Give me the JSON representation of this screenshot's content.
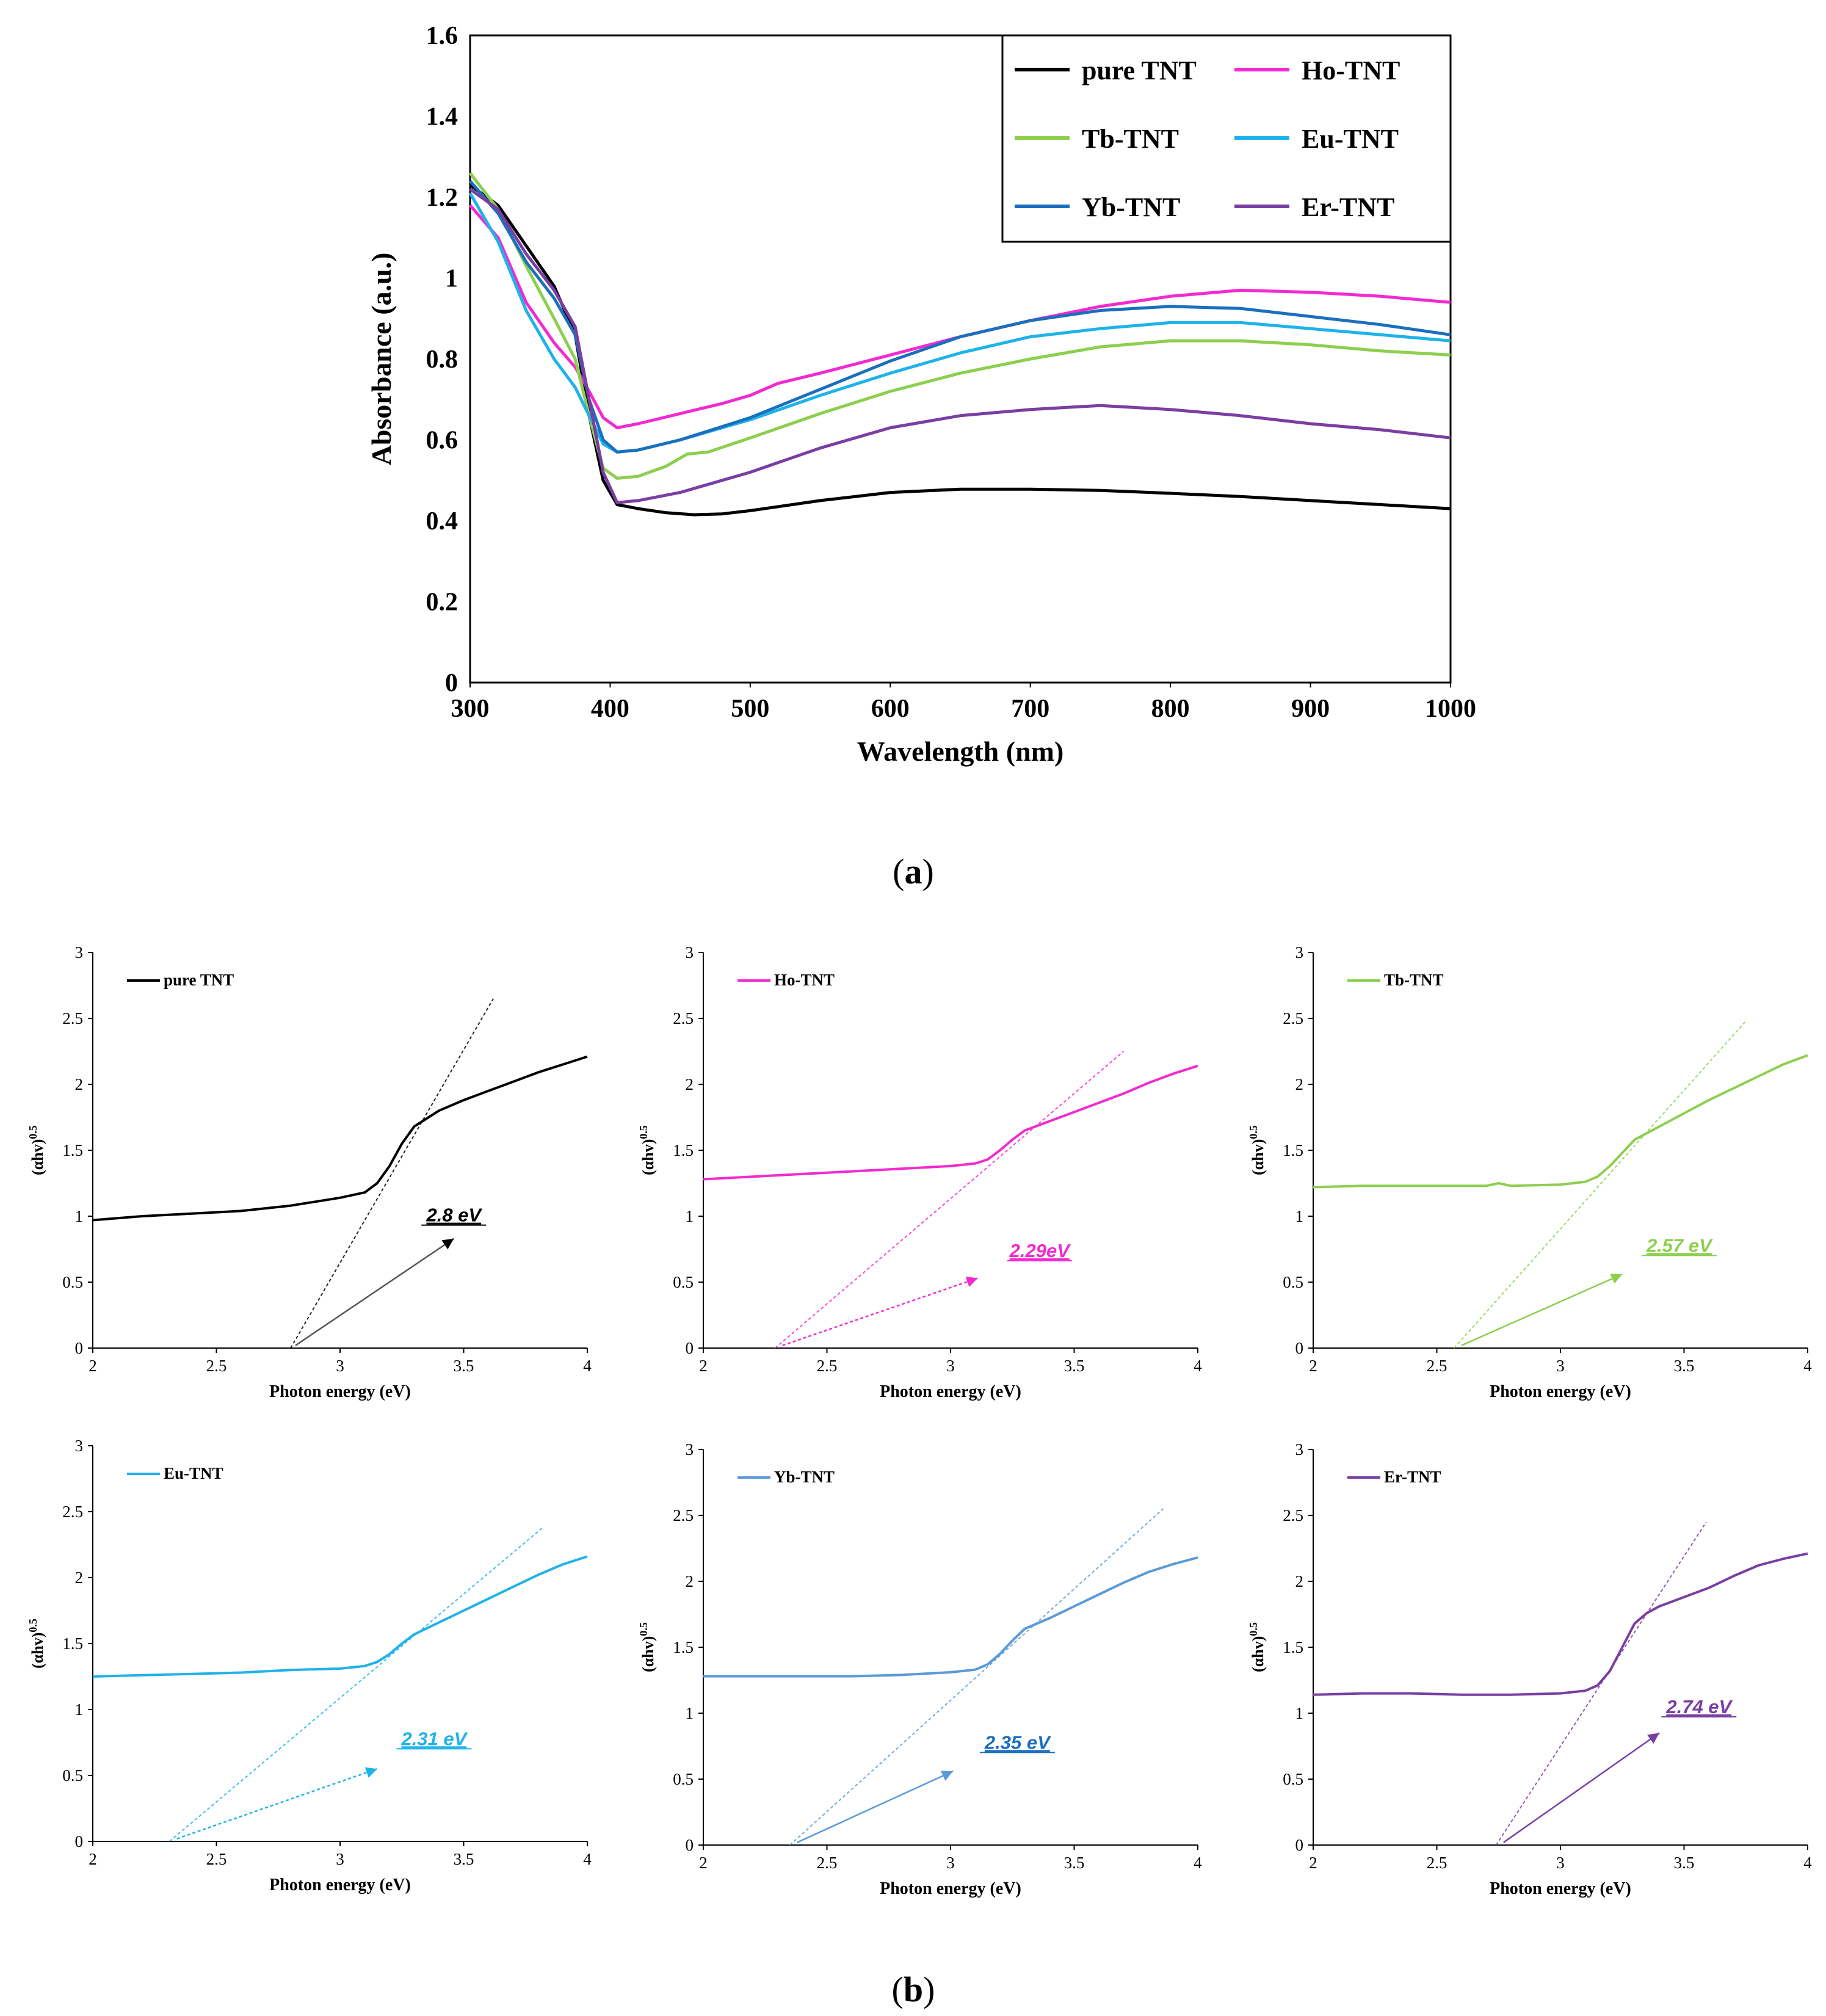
{
  "captions": {
    "a_open": "(",
    "a_letter": "a",
    "a_close": ")",
    "b_open": "(",
    "b_letter": "b",
    "b_close": ")"
  },
  "chart_data": [
    {
      "id": "a",
      "type": "line",
      "xlabel": "Wavelength (nm)",
      "ylabel": "Absorbance (a.u.)",
      "xlim": [
        300,
        1000
      ],
      "ylim": [
        0,
        1.6
      ],
      "xticks": [
        300,
        400,
        500,
        600,
        700,
        800,
        900,
        1000
      ],
      "yticks": [
        0,
        0.2,
        0.4,
        0.6,
        0.8,
        1,
        1.2,
        1.4,
        1.6
      ],
      "ytick_labels": [
        "0",
        "0.2",
        "0.4",
        "0.6",
        "0.8",
        "1",
        "1.2",
        "1.4",
        "1.6"
      ],
      "legend_position": "top-right",
      "series": [
        {
          "name": "pure TNT",
          "color": "#000000",
          "x": [
            300,
            320,
            340,
            360,
            375,
            385,
            395,
            405,
            420,
            440,
            460,
            480,
            500,
            550,
            600,
            650,
            700,
            750,
            800,
            850,
            900,
            950,
            1000
          ],
          "y": [
            1.23,
            1.18,
            1.08,
            0.98,
            0.86,
            0.66,
            0.5,
            0.44,
            0.43,
            0.42,
            0.415,
            0.417,
            0.425,
            0.45,
            0.47,
            0.478,
            0.478,
            0.475,
            0.468,
            0.46,
            0.45,
            0.44,
            0.43
          ]
        },
        {
          "name": "Ho-TNT",
          "color": "#f22ad0",
          "x": [
            300,
            320,
            340,
            360,
            375,
            385,
            395,
            405,
            420,
            450,
            480,
            500,
            520,
            550,
            600,
            650,
            700,
            750,
            800,
            850,
            900,
            950,
            1000
          ],
          "y": [
            1.18,
            1.1,
            0.94,
            0.84,
            0.78,
            0.72,
            0.655,
            0.63,
            0.64,
            0.665,
            0.69,
            0.71,
            0.74,
            0.765,
            0.81,
            0.855,
            0.895,
            0.93,
            0.955,
            0.97,
            0.965,
            0.955,
            0.94
          ]
        },
        {
          "name": "Tb-TNT",
          "color": "#8ccf4e",
          "x": [
            300,
            320,
            340,
            360,
            375,
            385,
            395,
            405,
            420,
            440,
            455,
            470,
            500,
            550,
            600,
            650,
            700,
            750,
            800,
            850,
            900,
            950,
            1000
          ],
          "y": [
            1.26,
            1.17,
            1.03,
            0.9,
            0.8,
            0.66,
            0.53,
            0.505,
            0.51,
            0.535,
            0.565,
            0.57,
            0.605,
            0.665,
            0.72,
            0.765,
            0.8,
            0.83,
            0.845,
            0.845,
            0.835,
            0.82,
            0.81
          ]
        },
        {
          "name": "Eu-TNT",
          "color": "#1fb2ea",
          "x": [
            300,
            320,
            340,
            360,
            375,
            385,
            395,
            405,
            420,
            450,
            500,
            550,
            600,
            650,
            700,
            750,
            800,
            850,
            900,
            950,
            1000
          ],
          "y": [
            1.21,
            1.09,
            0.92,
            0.8,
            0.73,
            0.66,
            0.59,
            0.57,
            0.575,
            0.6,
            0.65,
            0.71,
            0.765,
            0.815,
            0.855,
            0.875,
            0.89,
            0.89,
            0.875,
            0.86,
            0.845
          ]
        },
        {
          "name": "Yb-TNT",
          "color": "#1a6fbe",
          "x": [
            300,
            320,
            340,
            360,
            375,
            385,
            395,
            405,
            420,
            450,
            500,
            550,
            600,
            650,
            700,
            750,
            800,
            850,
            900,
            950,
            1000
          ],
          "y": [
            1.24,
            1.16,
            1.04,
            0.95,
            0.86,
            0.7,
            0.6,
            0.57,
            0.575,
            0.6,
            0.655,
            0.725,
            0.795,
            0.855,
            0.895,
            0.92,
            0.93,
            0.925,
            0.905,
            0.885,
            0.86
          ]
        },
        {
          "name": "Er-TNT",
          "color": "#7a3ea3",
          "x": [
            300,
            320,
            340,
            360,
            375,
            385,
            395,
            405,
            420,
            450,
            500,
            550,
            600,
            650,
            700,
            750,
            800,
            850,
            900,
            950,
            1000
          ],
          "y": [
            1.22,
            1.17,
            1.06,
            0.97,
            0.88,
            0.7,
            0.52,
            0.445,
            0.45,
            0.47,
            0.52,
            0.58,
            0.63,
            0.66,
            0.675,
            0.685,
            0.675,
            0.66,
            0.64,
            0.625,
            0.605
          ]
        }
      ]
    },
    {
      "id": "b1",
      "type": "line",
      "legend": "pure TNT",
      "color": "#000000",
      "xlabel": "Photon energy  (eV)",
      "ylabel": "(αhv)",
      "ylabel_sup": "0.5",
      "annotation": "2.8 eV",
      "xlim": [
        2,
        4
      ],
      "ylim": [
        0,
        3
      ],
      "xticks": [
        2,
        2.5,
        3,
        3.5,
        4
      ],
      "xtick_labels": [
        "2",
        "2.5",
        "3",
        "3.5",
        "4"
      ],
      "yticks": [
        0,
        0.5,
        1,
        1.5,
        2,
        2.5,
        3
      ],
      "ytick_labels": [
        "0",
        "0.5",
        "1",
        "1.5",
        "2",
        "2.5",
        "3"
      ],
      "x": [
        2,
        2.2,
        2.4,
        2.6,
        2.8,
        3.0,
        3.1,
        3.15,
        3.2,
        3.25,
        3.3,
        3.4,
        3.5,
        3.6,
        3.7,
        3.8,
        3.9,
        4
      ],
      "y": [
        0.97,
        1.0,
        1.02,
        1.04,
        1.08,
        1.14,
        1.18,
        1.25,
        1.38,
        1.55,
        1.68,
        1.8,
        1.88,
        1.95,
        2.02,
        2.09,
        2.15,
        2.21
      ],
      "tangent": {
        "x": [
          2.8,
          3.62
        ],
        "y": [
          0,
          2.65
        ]
      },
      "arrow": {
        "x": [
          2.82,
          3.46
        ],
        "y": [
          0.02,
          0.83
        ]
      },
      "label_at": {
        "x": 3.46,
        "y": 0.96
      }
    },
    {
      "id": "b2",
      "type": "line",
      "legend": "Ho-TNT",
      "color": "#f22ad0",
      "xlabel": "Photon energy  (eV)",
      "ylabel": "(αhv)",
      "ylabel_sup": "0.5",
      "annotation": "2.29eV",
      "xlim": [
        2,
        4
      ],
      "ylim": [
        0,
        3
      ],
      "xticks": [
        2,
        2.5,
        3,
        3.5,
        4
      ],
      "xtick_labels": [
        "2",
        "2.5",
        "3",
        "3.5",
        "4"
      ],
      "yticks": [
        0,
        0.5,
        1,
        1.5,
        2,
        2.5,
        3
      ],
      "ytick_labels": [
        "0",
        "0.5",
        "1",
        "1.5",
        "2",
        "2.5",
        "3"
      ],
      "x": [
        2,
        2.2,
        2.4,
        2.6,
        2.8,
        3.0,
        3.1,
        3.15,
        3.2,
        3.25,
        3.3,
        3.4,
        3.5,
        3.6,
        3.7,
        3.8,
        3.9,
        4
      ],
      "y": [
        1.28,
        1.3,
        1.32,
        1.34,
        1.36,
        1.38,
        1.4,
        1.43,
        1.5,
        1.58,
        1.65,
        1.72,
        1.79,
        1.86,
        1.93,
        2.01,
        2.08,
        2.14
      ],
      "tangent": {
        "x": [
          2.29,
          3.7
        ],
        "y": [
          0,
          2.25
        ]
      },
      "arrow": {
        "x": [
          2.32,
          3.11
        ],
        "y": [
          0.02,
          0.53
        ]
      },
      "label_at": {
        "x": 3.36,
        "y": 0.69
      }
    },
    {
      "id": "b3",
      "type": "line",
      "legend": "Tb-TNT",
      "color": "#8ccf4e",
      "xlabel": "Photon energy  (eV)",
      "ylabel": "(αhv)",
      "ylabel_sup": "0.5",
      "annotation": "2.57 eV",
      "xlim": [
        2,
        4
      ],
      "ylim": [
        0,
        3
      ],
      "xticks": [
        2,
        2.5,
        3,
        3.5,
        4
      ],
      "xtick_labels": [
        "2",
        "2.5",
        "3",
        "3.5",
        "4"
      ],
      "yticks": [
        0,
        0.5,
        1,
        1.5,
        2,
        2.5,
        3
      ],
      "ytick_labels": [
        "0",
        "0.5",
        "1",
        "1.5",
        "2",
        "2.5",
        "3"
      ],
      "x": [
        2,
        2.2,
        2.4,
        2.6,
        2.7,
        2.75,
        2.8,
        3.0,
        3.1,
        3.15,
        3.2,
        3.25,
        3.3,
        3.4,
        3.5,
        3.6,
        3.7,
        3.8,
        3.9,
        4
      ],
      "y": [
        1.22,
        1.23,
        1.23,
        1.23,
        1.23,
        1.25,
        1.23,
        1.24,
        1.26,
        1.3,
        1.38,
        1.48,
        1.58,
        1.68,
        1.78,
        1.88,
        1.97,
        2.06,
        2.15,
        2.22
      ],
      "tangent": {
        "x": [
          2.57,
          3.75
        ],
        "y": [
          0,
          2.48
        ]
      },
      "arrow": {
        "x": [
          2.6,
          3.25
        ],
        "y": [
          0.02,
          0.56
        ]
      },
      "label_at": {
        "x": 3.48,
        "y": 0.73
      }
    },
    {
      "id": "b4",
      "type": "line",
      "legend": "Eu-TNT",
      "color": "#1fb2ea",
      "xlabel": "Photon energy  (eV)",
      "ylabel": "(αhv)",
      "ylabel_sup": "0.5",
      "annotation": "2.31 eV",
      "xlim": [
        2,
        4
      ],
      "ylim": [
        0,
        3
      ],
      "xticks": [
        2,
        2.5,
        3,
        3.5,
        4
      ],
      "xtick_labels": [
        "2",
        "2.5",
        "3",
        "3.5",
        "4"
      ],
      "yticks": [
        0,
        0.5,
        1,
        1.5,
        2,
        2.5,
        3
      ],
      "ytick_labels": [
        "0",
        "0.5",
        "1",
        "1.5",
        "2",
        "2.5",
        "3"
      ],
      "x": [
        2,
        2.2,
        2.4,
        2.6,
        2.8,
        3.0,
        3.1,
        3.15,
        3.2,
        3.25,
        3.3,
        3.4,
        3.5,
        3.6,
        3.7,
        3.8,
        3.9,
        4
      ],
      "y": [
        1.25,
        1.26,
        1.27,
        1.28,
        1.3,
        1.31,
        1.33,
        1.36,
        1.42,
        1.5,
        1.57,
        1.66,
        1.75,
        1.84,
        1.93,
        2.02,
        2.1,
        2.16
      ],
      "tangent": {
        "x": [
          2.31,
          3.82
        ],
        "y": [
          0,
          2.38
        ]
      },
      "arrow": {
        "x": [
          2.34,
          3.15
        ],
        "y": [
          0.02,
          0.55
        ]
      },
      "label_at": {
        "x": 3.38,
        "y": 0.73
      }
    },
    {
      "id": "b5",
      "type": "line",
      "legend": "Yb-TNT",
      "color": "#5a9ad6",
      "xlabel": "Photon energy  (eV)",
      "ylabel": "(αhv)",
      "ylabel_sup": "0.5",
      "annotation": "2.35 eV",
      "xlim": [
        2,
        4
      ],
      "ylim": [
        0,
        3
      ],
      "xticks": [
        2,
        2.5,
        3,
        3.5,
        4
      ],
      "xtick_labels": [
        "2",
        "2.5",
        "3",
        "3.5",
        "4"
      ],
      "yticks": [
        0,
        0.5,
        1,
        1.5,
        2,
        2.5,
        3
      ],
      "ytick_labels": [
        "0",
        "0.5",
        "1",
        "1.5",
        "2",
        "2.5",
        "3"
      ],
      "x": [
        2,
        2.2,
        2.4,
        2.6,
        2.8,
        3.0,
        3.1,
        3.15,
        3.2,
        3.25,
        3.3,
        3.4,
        3.5,
        3.6,
        3.7,
        3.8,
        3.9,
        4
      ],
      "y": [
        1.28,
        1.28,
        1.28,
        1.28,
        1.29,
        1.31,
        1.33,
        1.37,
        1.45,
        1.55,
        1.64,
        1.72,
        1.81,
        1.9,
        1.99,
        2.07,
        2.13,
        2.18
      ],
      "tangent": {
        "x": [
          2.35,
          3.86
        ],
        "y": [
          0,
          2.55
        ]
      },
      "arrow": {
        "x": [
          2.38,
          3.01
        ],
        "y": [
          0.02,
          0.56
        ]
      },
      "label_at": {
        "x": 3.27,
        "y": 0.73
      }
    },
    {
      "id": "b6",
      "type": "line",
      "legend": "Er-TNT",
      "color": "#7a3ea3",
      "xlabel": "Photon energy  (eV)",
      "ylabel": "(αhv)",
      "ylabel_sup": "0.5",
      "annotation": "2.74 eV",
      "xlim": [
        2,
        4
      ],
      "ylim": [
        0,
        3
      ],
      "xticks": [
        2,
        2.5,
        3,
        3.5,
        4
      ],
      "xtick_labels": [
        "2",
        "2.5",
        "3",
        "3.5",
        "4"
      ],
      "yticks": [
        0,
        0.5,
        1,
        1.5,
        2,
        2.5,
        3
      ],
      "ytick_labels": [
        "0",
        "0.5",
        "1",
        "1.5",
        "2",
        "2.5",
        "3"
      ],
      "x": [
        2,
        2.2,
        2.4,
        2.6,
        2.8,
        3.0,
        3.1,
        3.15,
        3.2,
        3.25,
        3.3,
        3.35,
        3.4,
        3.5,
        3.6,
        3.7,
        3.8,
        3.9,
        4
      ],
      "y": [
        1.14,
        1.15,
        1.15,
        1.14,
        1.14,
        1.15,
        1.17,
        1.21,
        1.32,
        1.5,
        1.68,
        1.76,
        1.81,
        1.88,
        1.95,
        2.04,
        2.12,
        2.17,
        2.21
      ],
      "tangent": {
        "x": [
          2.74,
          3.59
        ],
        "y": [
          0,
          2.45
        ]
      },
      "arrow": {
        "x": [
          2.77,
          3.4
        ],
        "y": [
          0.02,
          0.85
        ]
      },
      "label_at": {
        "x": 3.56,
        "y": 1.0
      }
    }
  ]
}
